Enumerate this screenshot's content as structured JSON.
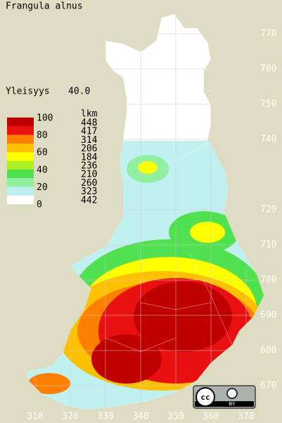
{
  "title": "Frangula alnus",
  "index": {
    "label": "Yleisyys",
    "value": "40.0"
  },
  "legend": {
    "header": "lkm",
    "scale_labels": [
      "100",
      "80",
      "60",
      "40",
      "20",
      "0"
    ],
    "colors": [
      "#c00000",
      "#e81010",
      "#ff8000",
      "#ffc000",
      "#ffff00",
      "#b0f020",
      "#50e050",
      "#90f0a0",
      "#c0f0f0",
      "#ffffff"
    ],
    "counts": [
      448,
      417,
      314,
      206,
      184,
      236,
      210,
      260,
      323,
      442
    ]
  },
  "map": {
    "x_ticks": [
      310,
      320,
      330,
      340,
      350,
      360,
      370
    ],
    "y_ticks": [
      770,
      760,
      750,
      740,
      720,
      710,
      700,
      690,
      680,
      670
    ]
  },
  "badge": {
    "cc": "cc",
    "by": "BY"
  }
}
